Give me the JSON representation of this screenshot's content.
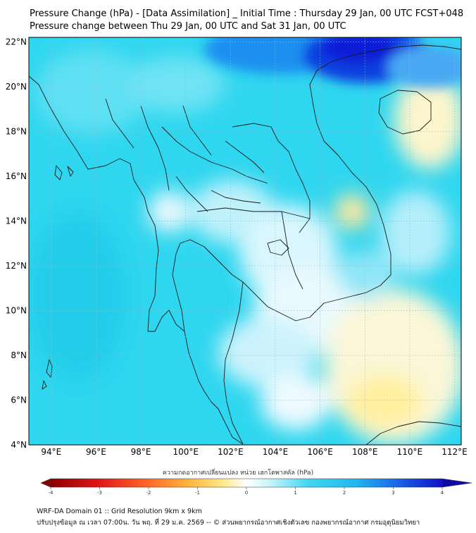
{
  "header": {
    "title_line1": "Pressure Change (hPa) - [Data Assimilation] _ Initial Time : Thursday 29 Jan, 00 UTC FCST+048",
    "title_line2": "Pressure change between Thu 29 Jan, 00 UTC and Sat 31 Jan, 00 UTC"
  },
  "map": {
    "lon_range": [
      93,
      112.3
    ],
    "lat_range": [
      4,
      22.2
    ],
    "lat_ticks": [
      "22°N",
      "20°N",
      "18°N",
      "16°N",
      "14°N",
      "12°N",
      "10°N",
      "8°N",
      "6°N",
      "4°N"
    ],
    "lat_values": [
      22,
      20,
      18,
      16,
      14,
      12,
      10,
      8,
      6,
      4
    ],
    "lon_ticks": [
      "94°E",
      "96°E",
      "98°E",
      "100°E",
      "102°E",
      "104°E",
      "106°E",
      "108°E",
      "110°E",
      "112°E"
    ],
    "lon_values": [
      94,
      96,
      98,
      100,
      102,
      104,
      106,
      108,
      110,
      112
    ],
    "grid": true,
    "colors": {
      "base_field": "#2fd3ee",
      "strong_fall": "#0a1fd6",
      "slight_rise": "#fff1a8",
      "near_zero": "#f4fbff",
      "coastline": "#1a1a1a"
    }
  },
  "colorbar": {
    "label": "ความกดอากาศเปลี่ยนแปลง หน่วย เฮกโตพาสคัล (hPa)",
    "range": [
      -4,
      4
    ],
    "tick_labels": [
      "-4",
      "-3",
      "-2",
      "-1",
      "0",
      "1",
      "2",
      "3",
      "4"
    ],
    "tick_values": [
      -4,
      -3,
      -2,
      -1,
      0,
      1,
      2,
      3,
      4
    ],
    "extend": "both"
  },
  "footer": {
    "line1": "WRF-DA Domain 01 :: Grid Resolution 9km x 9km",
    "line2": "ปรับปรุงข้อมูล ณ เวลา 07:00น. วัน พฤ. ที่ 29 ม.ค. 2569 -- © ส่วนพยากรณ์อากาศเชิงตัวเลข กองพยากรณ์อากาศ กรมอุตุนิยมวิทยา"
  }
}
